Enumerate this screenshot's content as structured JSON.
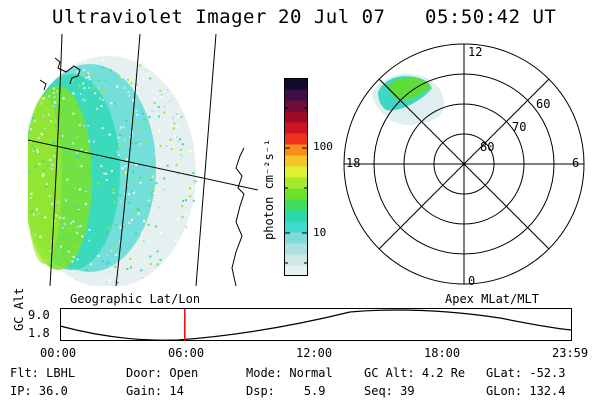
{
  "header": {
    "title": "Ultraviolet Imager",
    "date": "20 Jul 07",
    "time": "05:50:42 UT"
  },
  "colorbar": {
    "unit_label": "photon cm⁻²s⁻¹",
    "tick_labels": [
      "100",
      "10"
    ],
    "scale": "log",
    "colors": [
      "#e9f0f0",
      "#cfe7e7",
      "#aee0e0",
      "#7fdada",
      "#3ed9d0",
      "#27d8a8",
      "#3fdc5c",
      "#6de22d",
      "#a7e82a",
      "#dff232",
      "#f4c42a",
      "#f58e18",
      "#f0321a",
      "#cc1424",
      "#9c0c28",
      "#6e0c3a",
      "#3e0c48",
      "#120a2a"
    ]
  },
  "left_map": {
    "label": "Geographic Lat/Lon"
  },
  "polar_map": {
    "label": "Apex MLat/MLT",
    "mlt_labels": {
      "top": "12",
      "left": "18",
      "right": "6",
      "bottom": "0"
    },
    "lat_labels": [
      "60",
      "70",
      "80"
    ]
  },
  "timeline": {
    "axis_label": "GC Alt",
    "y_top": "9.0",
    "y_bottom": "1.8",
    "x_ticks": [
      "00:00",
      "06:00",
      "12:00",
      "18:00",
      "23:59"
    ],
    "current_time_marker_hours": 5.85,
    "marker_color": "#ff0000"
  },
  "meta": {
    "flt_label": "Flt:",
    "flt_value": "LBHL",
    "ip_label": "IP:",
    "ip_value": "36.0",
    "door_label": "Door:",
    "door_value": "Open",
    "gain_label": "Gain:",
    "gain_value": "14",
    "mode_label": "Mode:",
    "mode_value": "Normal",
    "dsp_label": "Dsp:",
    "dsp_value": "5.9",
    "gcalt_label": "GC Alt:",
    "gcalt_value": "4.2 Re",
    "seq_label": "Seq:",
    "seq_value": "39",
    "glat_label": "GLat:",
    "glat_value": "-52.3",
    "glon_label": "GLon:",
    "glon_value": "132.4"
  }
}
